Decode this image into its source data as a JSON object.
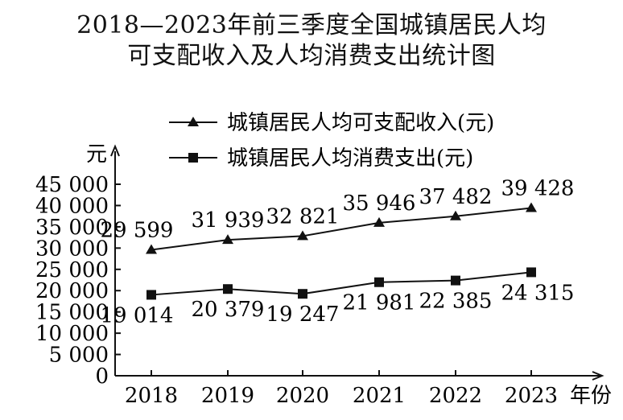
{
  "chart_data": {
    "type": "line",
    "title": "2018—2023年前三季度全国城镇居民人均",
    "subtitle": "可支配收入及人均消费支出统计图",
    "ylabel": "元",
    "xlabel": "年份",
    "categories": [
      "2018",
      "2019",
      "2020",
      "2021",
      "2022",
      "2023"
    ],
    "ylim": [
      0,
      45000
    ],
    "yticks": [
      0,
      5000,
      10000,
      15000,
      20000,
      25000,
      30000,
      35000,
      40000,
      45000
    ],
    "ytick_labels": [
      "0",
      "5 000",
      "10 000",
      "15 000",
      "20 000",
      "25 000",
      "30 000",
      "35 000",
      "40 000",
      "45 000"
    ],
    "legend_position": "top",
    "grid": false,
    "series": [
      {
        "name": "城镇居民人均可支配收入(元)",
        "marker": "triangle",
        "values": [
          29599,
          31939,
          32821,
          35946,
          37482,
          39428
        ],
        "labels": [
          "29 599",
          "31 939",
          "32 821",
          "35 946",
          "37 482",
          "39 428"
        ]
      },
      {
        "name": "城镇居民人均消费支出(元)",
        "marker": "square",
        "values": [
          19014,
          20379,
          19247,
          21981,
          22385,
          24315
        ],
        "labels": [
          "19 014",
          "20 379",
          "19 247",
          "21 981",
          "22 385",
          "24 315"
        ]
      }
    ]
  }
}
